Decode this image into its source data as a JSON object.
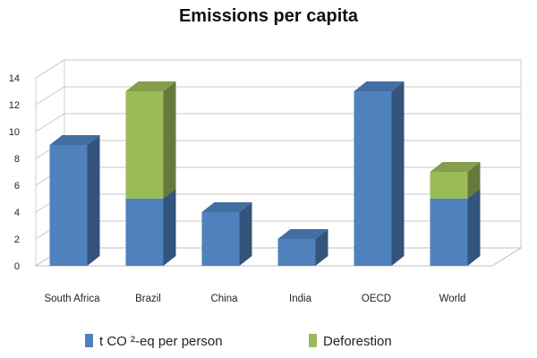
{
  "chart_data": {
    "type": "bar",
    "stacked": true,
    "three_d": true,
    "title": "Emissions per capita",
    "categories": [
      "South Africa",
      "Brazil",
      "China",
      "India",
      "OECD",
      "World"
    ],
    "series": [
      {
        "name": "t CO ²-eq per person",
        "color": "#4F81BD",
        "values": [
          9.0,
          5.0,
          4.0,
          2.0,
          13.0,
          5.0
        ]
      },
      {
        "name": "Deforestion",
        "color": "#9BBB59",
        "values": [
          0,
          8.0,
          0,
          0,
          0,
          2.0
        ]
      }
    ],
    "y_ticks": [
      "0",
      "2",
      "4",
      "6",
      "8",
      "10",
      "12",
      "14"
    ],
    "ylim": [
      0,
      14
    ],
    "grid": true,
    "legend_position": "bottom"
  }
}
